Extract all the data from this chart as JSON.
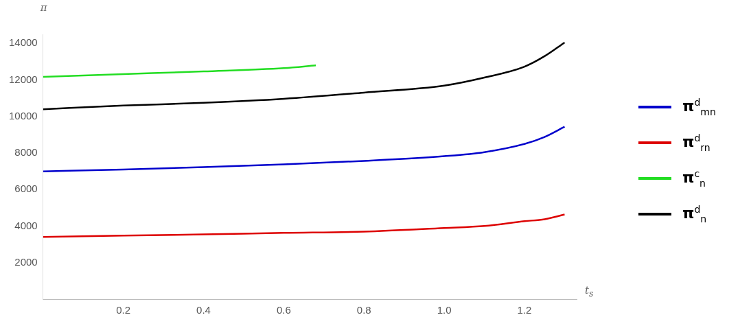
{
  "chart_data": {
    "type": "line",
    "xlabel": "t$_{s}$",
    "ylabel": "π",
    "xlim": [
      0,
      1.33
    ],
    "ylim": [
      0,
      14500
    ],
    "xticks": [
      0.2,
      0.4,
      0.6,
      0.8,
      {
        "value": 1.0,
        "label": "1.0"
      },
      1.2
    ],
    "yticks": [
      2000,
      4000,
      6000,
      8000,
      10000,
      12000,
      14000
    ],
    "grid": false,
    "legend": "right",
    "marker": "none",
    "line_style": "solid",
    "series": [
      {
        "name": "π$^{d}$$_{mn}$",
        "color": "#0000cc",
        "x": [
          0,
          0.2,
          0.4,
          0.6,
          0.8,
          1.0,
          1.1,
          1.2,
          1.25,
          1.3
        ],
        "values": [
          7000,
          7100,
          7230,
          7380,
          7570,
          7830,
          8050,
          8500,
          8880,
          9440
        ]
      },
      {
        "name": "π$^{d}$$_{rn}$",
        "color": "#dd0000",
        "x": [
          0,
          0.2,
          0.4,
          0.6,
          0.8,
          1.0,
          1.1,
          1.2,
          1.25,
          1.3
        ],
        "values": [
          3410,
          3480,
          3550,
          3630,
          3700,
          3900,
          4010,
          4270,
          4380,
          4640
        ]
      },
      {
        "name": "π$^{c}$$_{n}$",
        "color": "#22dd22",
        "x": [
          0,
          0.2,
          0.4,
          0.6,
          0.68
        ],
        "values": [
          12170,
          12320,
          12470,
          12650,
          12800
        ]
      },
      {
        "name": "π$^{d}$$_{n}$",
        "color": "#000000",
        "x": [
          0,
          0.2,
          0.4,
          0.6,
          0.8,
          1.0,
          1.1,
          1.2,
          1.25,
          1.3
        ],
        "values": [
          10400,
          10600,
          10750,
          10970,
          11310,
          11690,
          12130,
          12730,
          13300,
          14050
        ]
      }
    ]
  }
}
